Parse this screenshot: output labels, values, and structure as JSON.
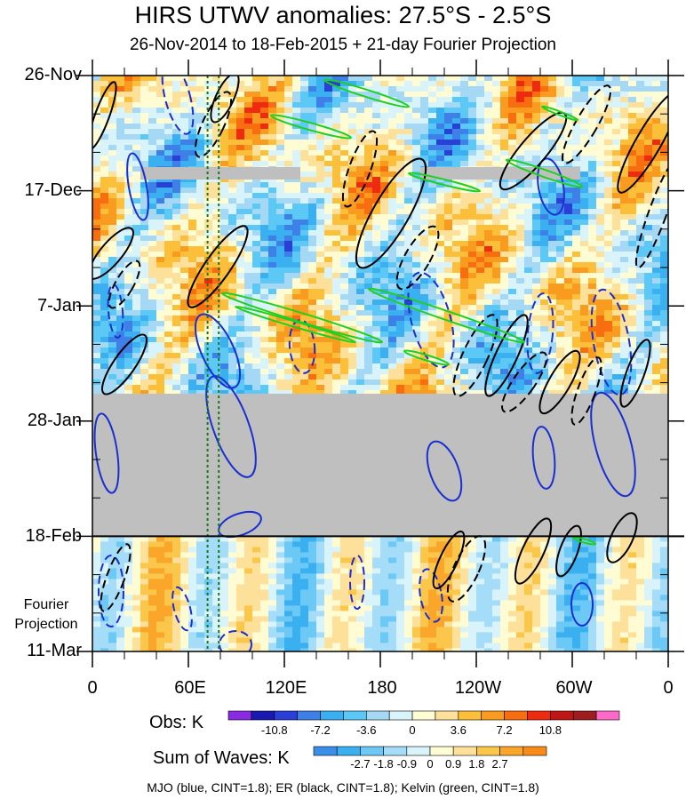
{
  "title": "HIRS UTWV anomalies: 27.5°S - 2.5°S",
  "subtitle": "26-Nov-2014 to 18-Feb-2015 + 21-day Fourier Projection",
  "projection_label_line1": "Fourier",
  "projection_label_line2": "Projection",
  "obs_colorbar": {
    "title": "Obs: K",
    "ticks": [
      "-10.8",
      "-7.2",
      "-3.6",
      "0",
      "3.6",
      "7.2",
      "10.8"
    ],
    "colors": [
      "#8a2be2",
      "#1a1ab0",
      "#2a3fd6",
      "#3f7fe8",
      "#3ab0f0",
      "#5cc8f5",
      "#a5d8f5",
      "#d8f3fa",
      "#fffbd2",
      "#fde19a",
      "#fbbf3a",
      "#f99b1e",
      "#f76d10",
      "#ee2b10",
      "#c01616",
      "#9c1e1e",
      "#ff6ac8"
    ]
  },
  "waves_colorbar": {
    "title": "Sum of Waves: K",
    "ticks": [
      "-2.7",
      "-1.8",
      "-0.9",
      "0",
      "0.9",
      "1.8",
      "2.7"
    ],
    "colors": [
      "#3a8fe8",
      "#3ab0f0",
      "#6cc8f5",
      "#a5dcf7",
      "#d8f3fa",
      "#fffbd2",
      "#fde19a",
      "#fbc74a",
      "#f9a62a",
      "#f88c18"
    ]
  },
  "footer": "MJO (blue, CINT=1.8); ER (black, CINT=1.8); Kelvin (green, CINT=1.8)",
  "chart_data": {
    "type": "heatmap",
    "title": "HIRS UTWV anomalies: 27.5°S - 2.5°S",
    "subtitle": "26-Nov-2014 to 18-Feb-2015 + 21-day Fourier Projection",
    "x_tick_labels": [
      "0",
      "60E",
      "120E",
      "180",
      "120W",
      "60W",
      "0"
    ],
    "x_tick_longitudes": [
      0,
      60,
      120,
      180,
      240,
      300,
      360
    ],
    "y_tick_labels": [
      "26-Nov",
      "17-Dec",
      "7-Jan",
      "28-Jan",
      "18-Feb",
      "11-Mar"
    ],
    "y_tick_days": [
      0,
      21,
      42,
      63,
      84,
      105
    ],
    "xlim": [
      0,
      360
    ],
    "ylim_days": [
      0,
      105
    ],
    "observation_end": "18-Feb-2015",
    "missing_data_day_range": [
      58,
      84
    ],
    "projection_day_range": [
      84,
      105
    ],
    "reference_longitudes": [
      72,
      79
    ],
    "obs_units": "K",
    "waves_units": "K",
    "contour_interval": 1.8,
    "contours": [
      {
        "wave": "MJO",
        "color": "blue",
        "cint": 1.8
      },
      {
        "wave": "ER",
        "color": "black",
        "cint": 1.8
      },
      {
        "wave": "Kelvin",
        "color": "green",
        "cint": 1.8
      }
    ]
  }
}
